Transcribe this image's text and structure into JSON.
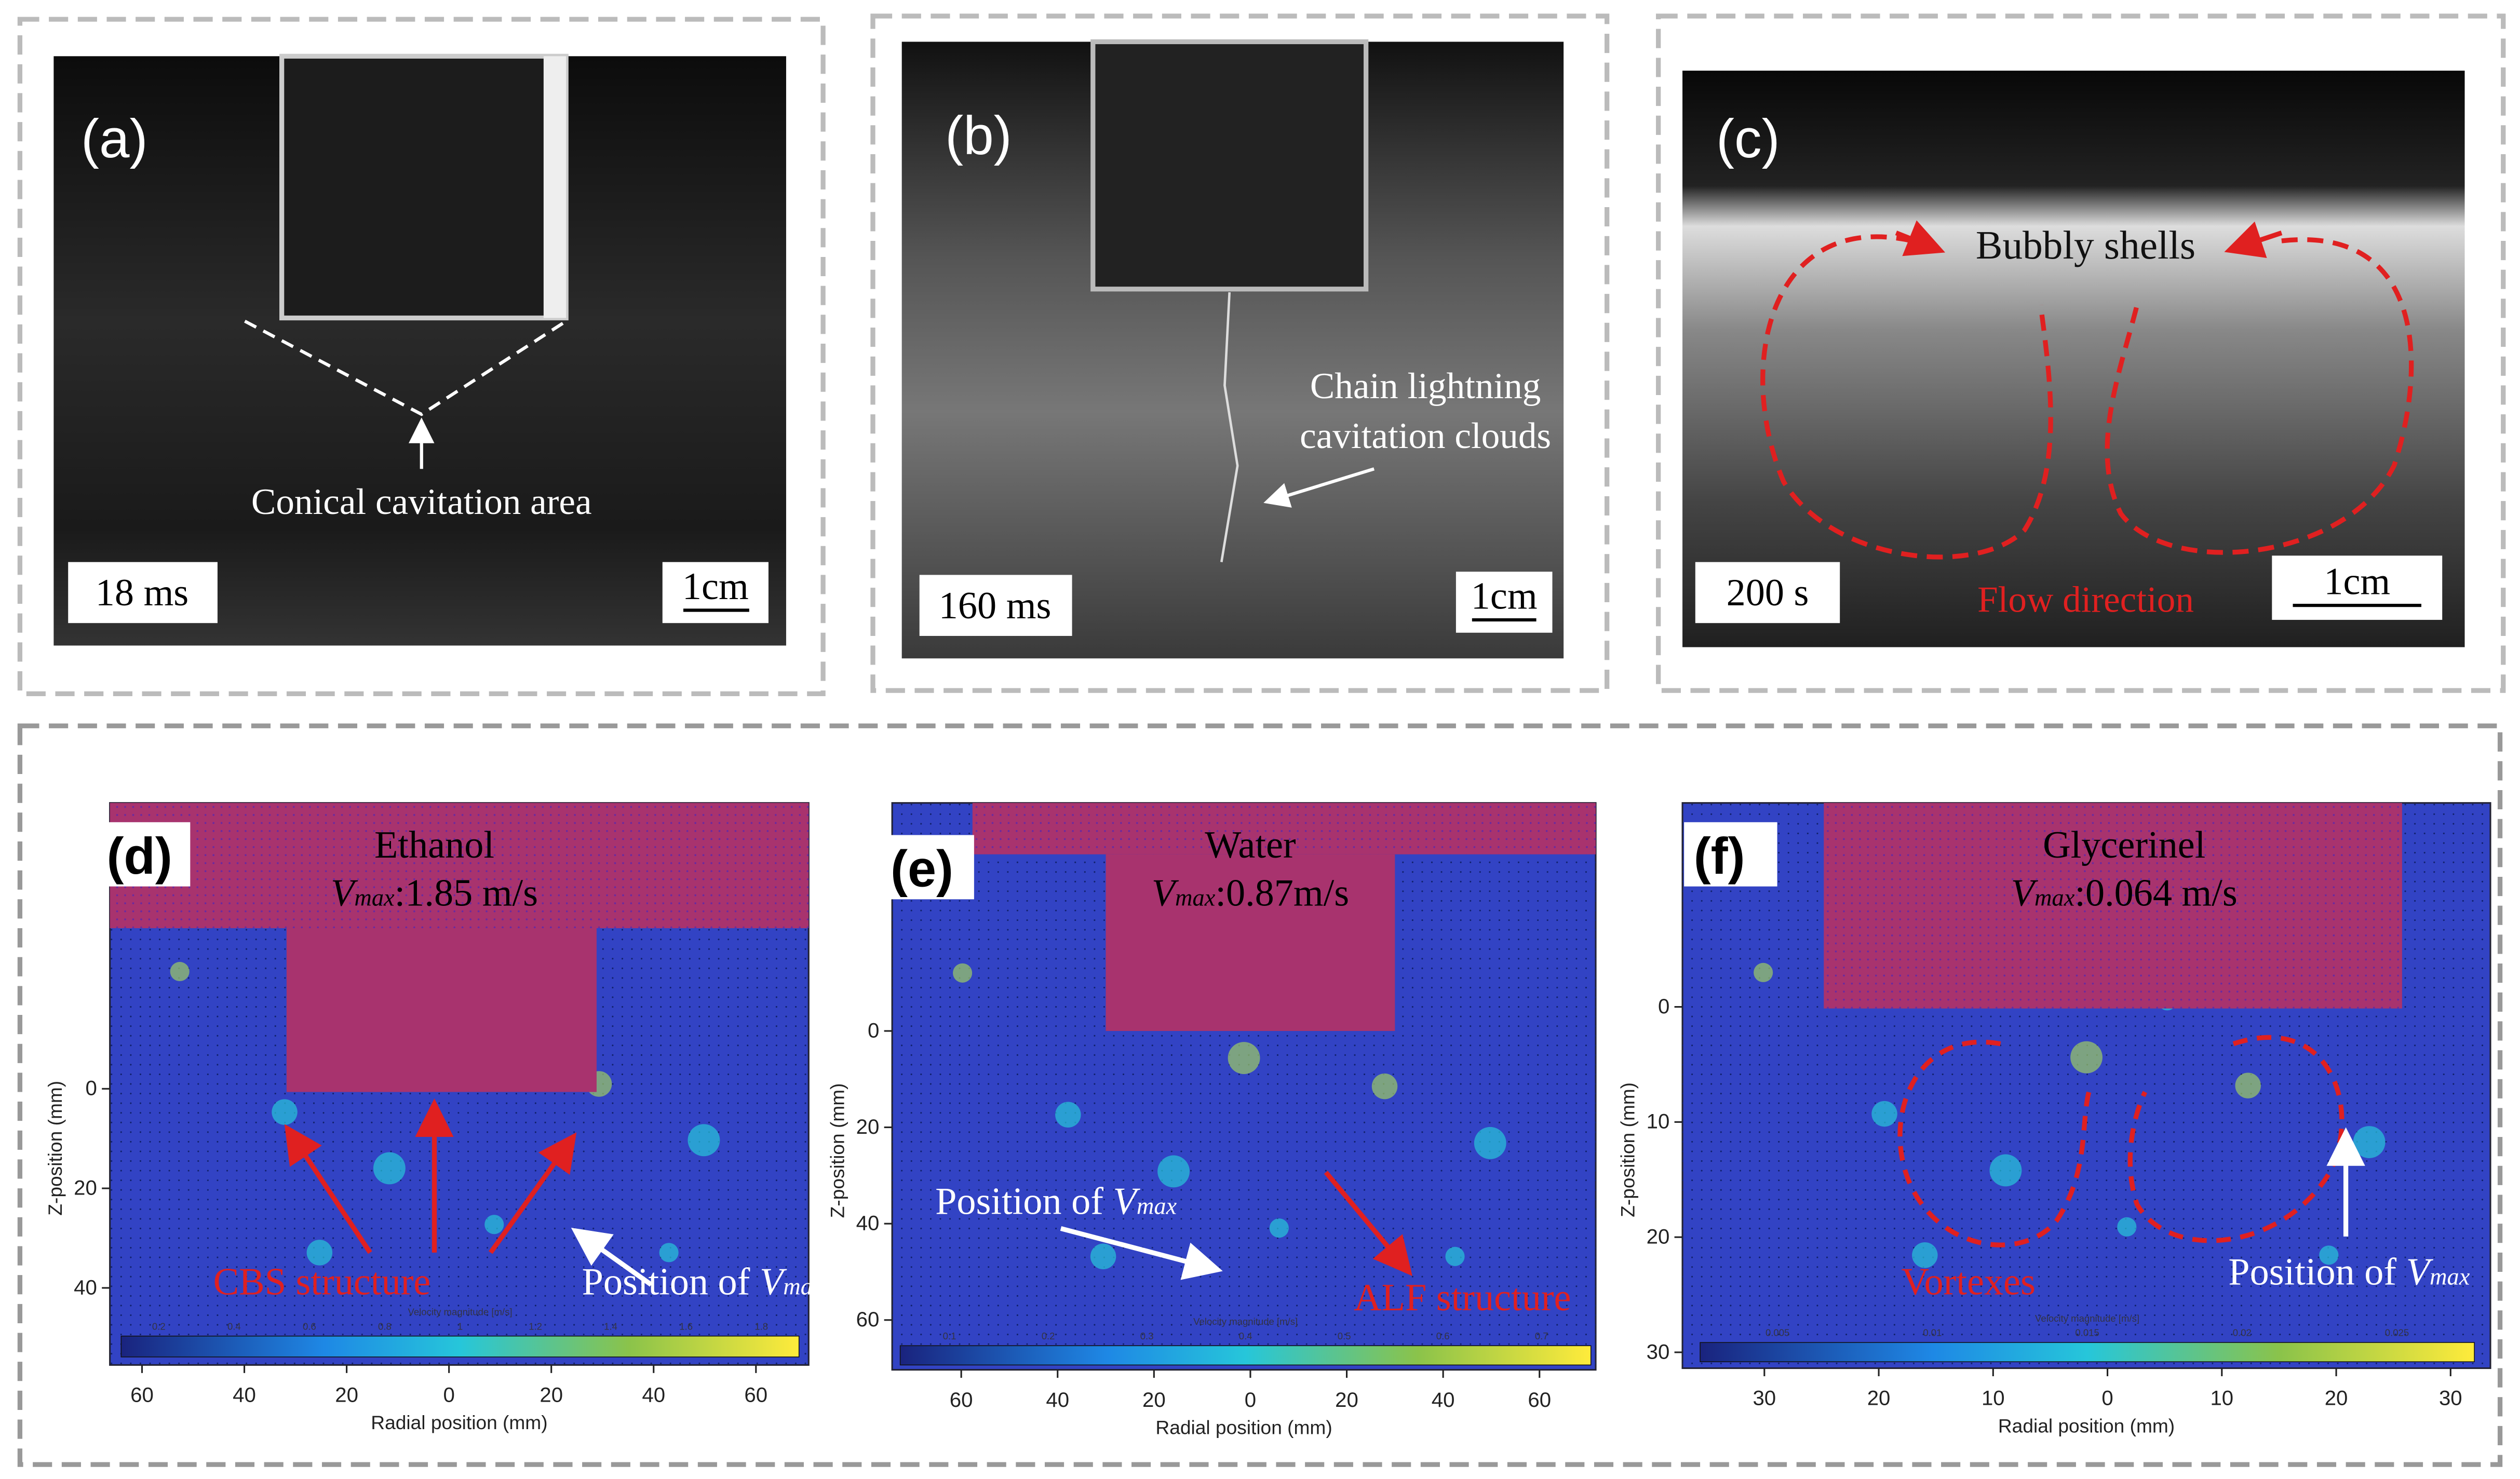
{
  "panels_top": [
    {
      "label": "(a)",
      "annotation": [
        "Conical cavitation area"
      ],
      "time": "18 ms",
      "scale": "1cm"
    },
    {
      "label": "(b)",
      "annotation": [
        "Chain lightning",
        "cavitation clouds"
      ],
      "time": "160 ms",
      "scale": "1cm"
    },
    {
      "label": "(c)",
      "annotation": [
        "Bubbly shells",
        "Flow direction"
      ],
      "time": "200 s",
      "scale": "1cm"
    }
  ],
  "panels_bottom": [
    {
      "label": "(d)",
      "fluid": "Ethanol",
      "vmax": {
        "symbol": "V",
        "subscript": "max",
        "value": ":1.85 m/s"
      },
      "structure": "CBS structure",
      "position": {
        "text": "Position of ",
        "symbol": "V",
        "subscript": "max"
      },
      "y_label": "Z-position (mm)",
      "x_label": "Radial position (mm)",
      "yticks": [
        0,
        20,
        40
      ],
      "xticks": [
        60,
        40,
        20,
        0,
        20,
        40,
        60
      ],
      "colorbar_label": "Velocity magnitude [m/s]",
      "colorbar_ticks": [
        "0.2",
        "0.4",
        "0.6",
        "0.8",
        "1",
        "1.2",
        "1.4",
        "1.6",
        "1.8"
      ]
    },
    {
      "label": "(e)",
      "fluid": "Water",
      "vmax": {
        "symbol": "V",
        "subscript": "max",
        "value": ":0.87m/s"
      },
      "structure": "ALF structure",
      "position": {
        "text": "Position of ",
        "symbol": "V",
        "subscript": "max"
      },
      "y_label": "Z-position (mm)",
      "x_label": "Radial position (mm)",
      "yticks": [
        0,
        20,
        40,
        60
      ],
      "xticks": [
        60,
        40,
        20,
        0,
        20,
        40,
        60
      ],
      "colorbar_label": "Velocity magnitude [m/s]",
      "colorbar_ticks": [
        "0.1",
        "0.2",
        "0.3",
        "0.4",
        "0.5",
        "0.6",
        "0.7"
      ]
    },
    {
      "label": "(f)",
      "fluid": "Glycerinel",
      "vmax": {
        "symbol": "V",
        "subscript": "max",
        "value": ":0.064 m/s"
      },
      "structure": "Vortexes",
      "position": {
        "text": "Position of ",
        "symbol": "V",
        "subscript": "max"
      },
      "y_label": "Z-position (mm)",
      "x_label": "Radial position (mm)",
      "yticks": [
        0,
        10,
        20,
        30
      ],
      "xticks": [
        30,
        20,
        10,
        0,
        10,
        20,
        30
      ],
      "colorbar_label": "Velocity magnitude [m/s]",
      "colorbar_ticks": [
        "0.005",
        "0.01",
        "0.015",
        "0.02",
        "0.025"
      ]
    }
  ]
}
